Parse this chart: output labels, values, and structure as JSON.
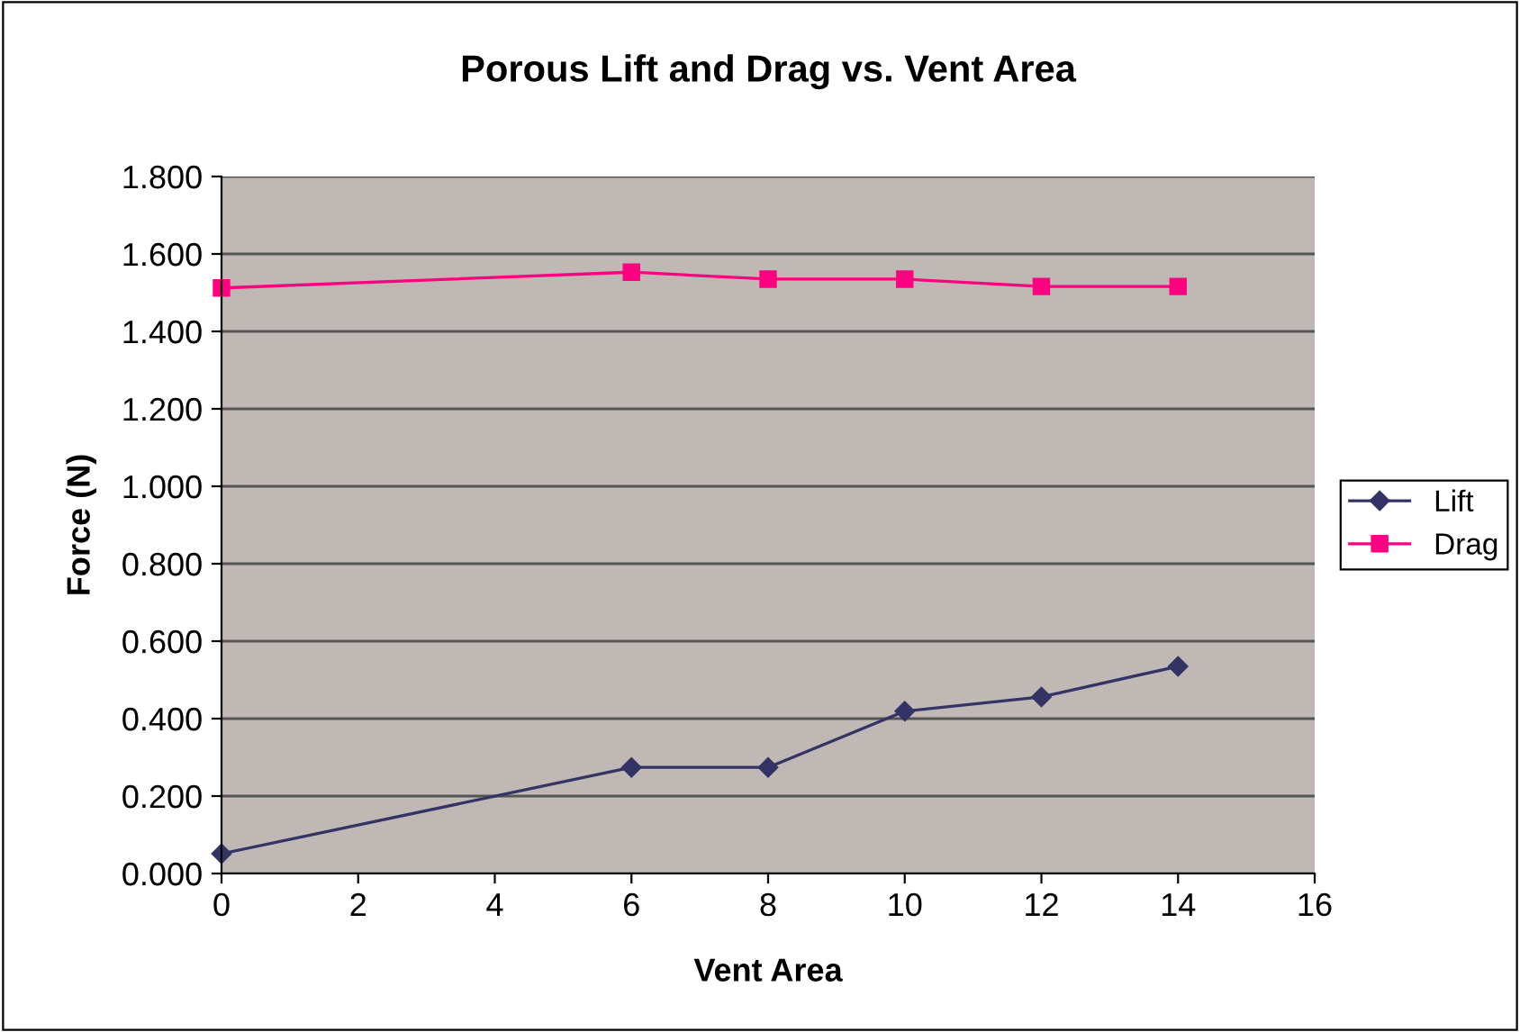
{
  "chart_data": {
    "type": "line",
    "title": "Porous Lift and Drag vs. Vent Area",
    "xlabel": "Vent Area",
    "ylabel": "Force (N)",
    "x": [
      0,
      6,
      8,
      10,
      12,
      14
    ],
    "series": [
      {
        "name": "Lift",
        "color": "#333366",
        "marker": "diamond",
        "values": [
          0.051,
          0.274,
          0.274,
          0.419,
          0.456,
          0.535
        ]
      },
      {
        "name": "Drag",
        "color": "#ff0080",
        "marker": "square",
        "values": [
          1.512,
          1.553,
          1.535,
          1.535,
          1.516,
          1.516
        ]
      }
    ],
    "xlim": [
      0,
      16
    ],
    "xticks": [
      0,
      2,
      4,
      6,
      8,
      10,
      12,
      14,
      16
    ],
    "ylim": [
      0,
      1.8
    ],
    "yticks": [
      {
        "value": 0,
        "label": "0.000"
      },
      {
        "value": 0.2,
        "label": "0.200"
      },
      {
        "value": 0.4,
        "label": "0.400"
      },
      {
        "value": 0.6,
        "label": "0.600"
      },
      {
        "value": 0.8,
        "label": "0.800"
      },
      {
        "value": 1.0,
        "label": "1.000"
      },
      {
        "value": 1.2,
        "label": "1.200"
      },
      {
        "value": 1.4,
        "label": "1.400"
      },
      {
        "value": 1.6,
        "label": "1.600"
      },
      {
        "value": 1.8,
        "label": "1.800"
      }
    ],
    "grid": "y",
    "legend": "right"
  }
}
